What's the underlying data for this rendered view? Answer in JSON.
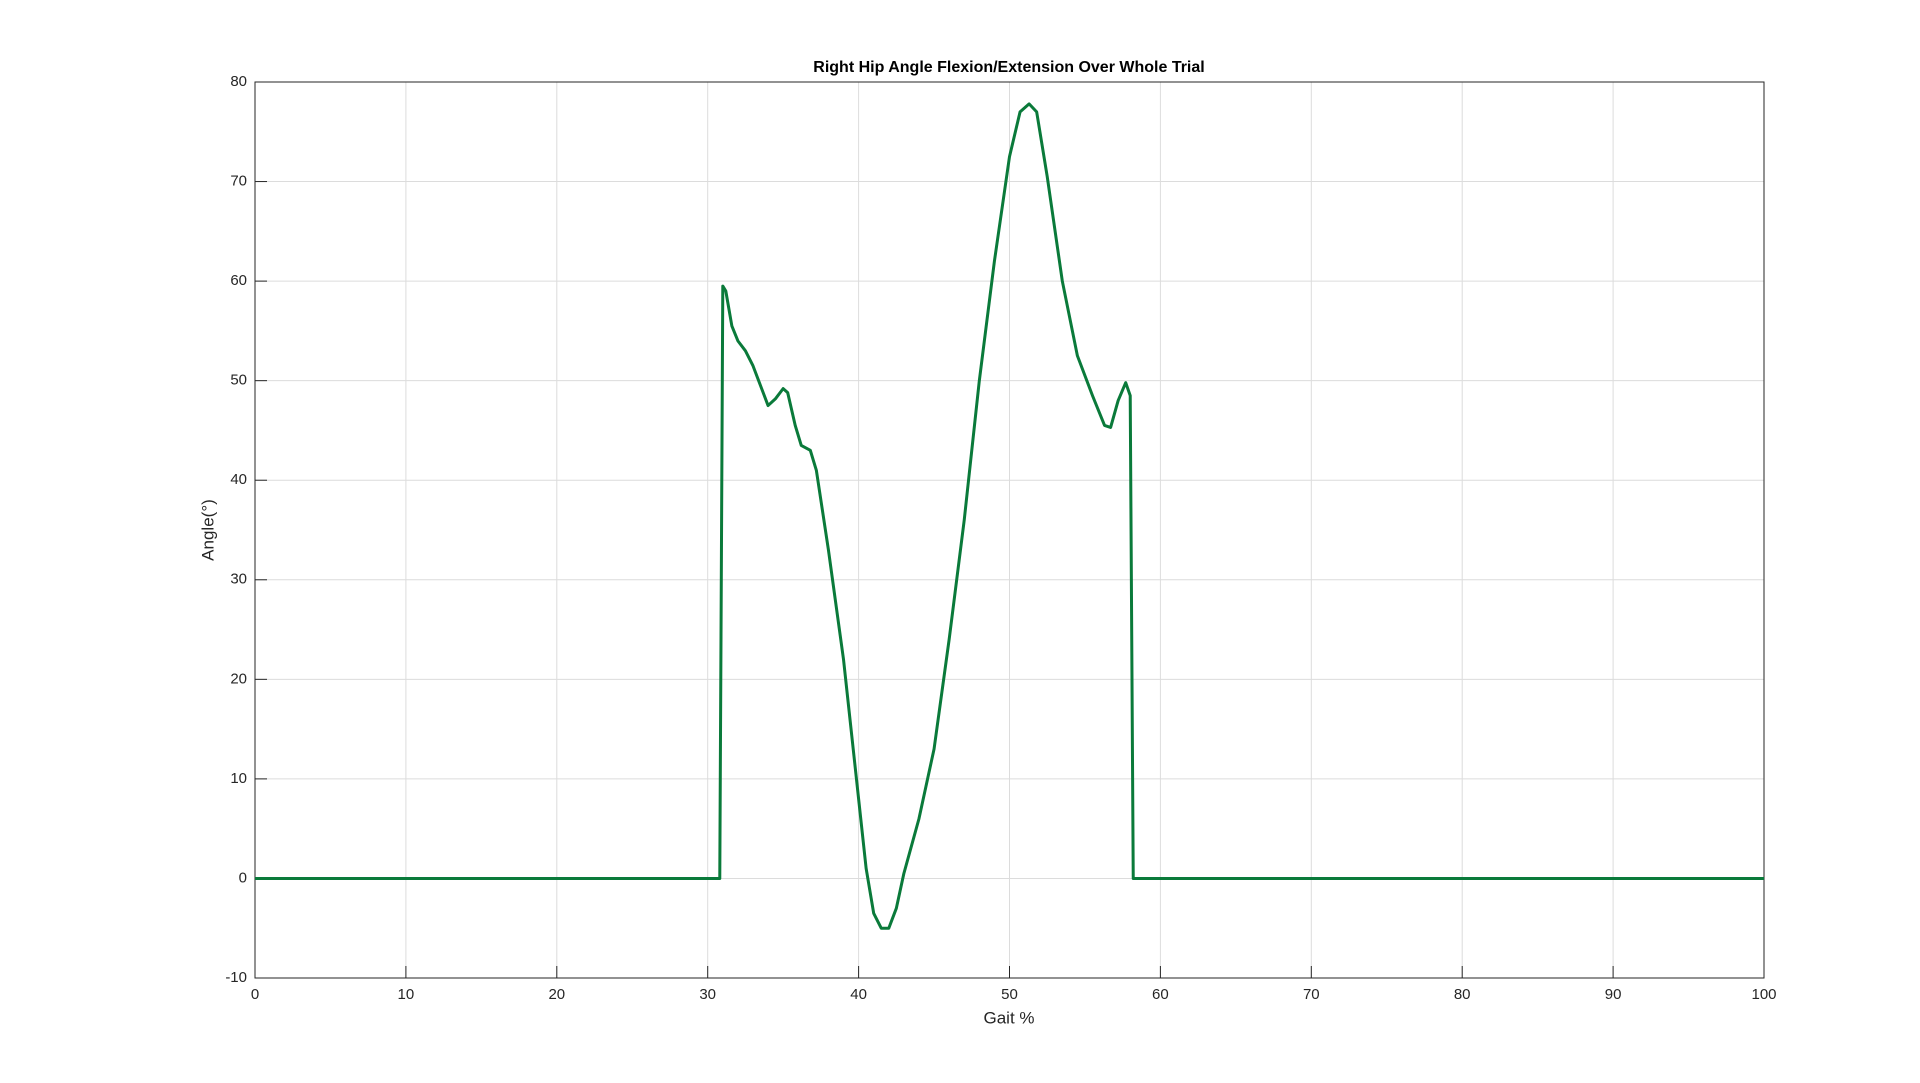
{
  "chart_data": {
    "type": "line",
    "title": "Right Hip Angle Flexion/Extension Over Whole Trial",
    "x_label": "Gait %",
    "y_label": "Angle(°)",
    "x": [
      0,
      30.8,
      31,
      31.2,
      31.6,
      32,
      32.5,
      33,
      33.5,
      34,
      34.5,
      35,
      35.3,
      35.8,
      36.2,
      36.8,
      37.2,
      38,
      39,
      40,
      40.5,
      41,
      41.5,
      42,
      42.5,
      43,
      44,
      45,
      46,
      47,
      48,
      49,
      50,
      50.7,
      51.3,
      51.8,
      52.5,
      53.5,
      54.5,
      55.5,
      56.3,
      56.7,
      57.2,
      57.7,
      58,
      58.2,
      100
    ],
    "series": [
      {
        "name": "Right Hip Angle",
        "color": "#0a7a3a",
        "values": [
          0,
          0,
          59.5,
          59,
          55.5,
          54,
          53,
          51.5,
          49.5,
          47.5,
          48.2,
          49.2,
          48.8,
          45.5,
          43.5,
          43,
          41,
          33,
          22,
          8,
          1,
          -3.5,
          -5,
          -5,
          -3,
          0.5,
          6,
          13,
          24,
          36,
          50,
          62,
          72.5,
          77,
          77.8,
          77,
          70.5,
          60,
          52.5,
          48.5,
          45.5,
          45.3,
          48,
          49.8,
          48.5,
          0,
          0
        ]
      }
    ],
    "xlim": [
      0,
      100
    ],
    "ylim": [
      -10,
      80
    ],
    "xticks": [
      0,
      10,
      20,
      30,
      40,
      50,
      60,
      70,
      80,
      90,
      100
    ],
    "yticks": [
      -10,
      0,
      10,
      20,
      30,
      40,
      50,
      60,
      70,
      80
    ],
    "grid": true
  }
}
